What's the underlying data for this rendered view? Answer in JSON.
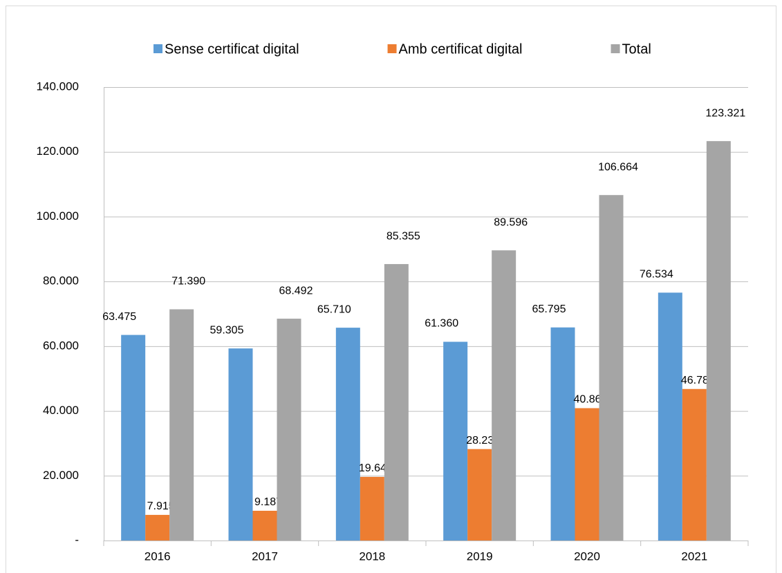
{
  "chart_data": {
    "type": "bar",
    "categories": [
      "2016",
      "2017",
      "2018",
      "2019",
      "2020",
      "2021"
    ],
    "series": [
      {
        "name": "Sense certificat digital",
        "color": "#5b9bd5",
        "values": [
          63475,
          59305,
          65710,
          61360,
          65795,
          76534
        ],
        "value_labels": [
          "63.475",
          "59.305",
          "65.710",
          "61.360",
          "65.795",
          "76.534"
        ]
      },
      {
        "name": "Amb certificat digital",
        "color": "#ed7d31",
        "values": [
          7915,
          9187,
          19645,
          28236,
          40869,
          46787
        ],
        "value_labels": [
          "7.915",
          "9.187",
          "19.645",
          "28.236",
          "40.869",
          "46.787"
        ]
      },
      {
        "name": "Total",
        "color": "#a5a5a5",
        "values": [
          71390,
          68492,
          85355,
          89596,
          106664,
          123321
        ],
        "value_labels": [
          "71.390",
          "68.492",
          "85.355",
          "89.596",
          "106.664",
          "123.321"
        ]
      }
    ],
    "ylim": [
      0,
      140000
    ],
    "yticks": [
      {
        "value": 0,
        "label": "-"
      },
      {
        "value": 20000,
        "label": "20.000"
      },
      {
        "value": 40000,
        "label": "40.000"
      },
      {
        "value": 60000,
        "label": "60.000"
      },
      {
        "value": 80000,
        "label": "80.000"
      },
      {
        "value": 100000,
        "label": "100.000"
      },
      {
        "value": 120000,
        "label": "120.000"
      },
      {
        "value": 140000,
        "label": "140.000"
      }
    ],
    "grid": true,
    "legend": "top"
  }
}
